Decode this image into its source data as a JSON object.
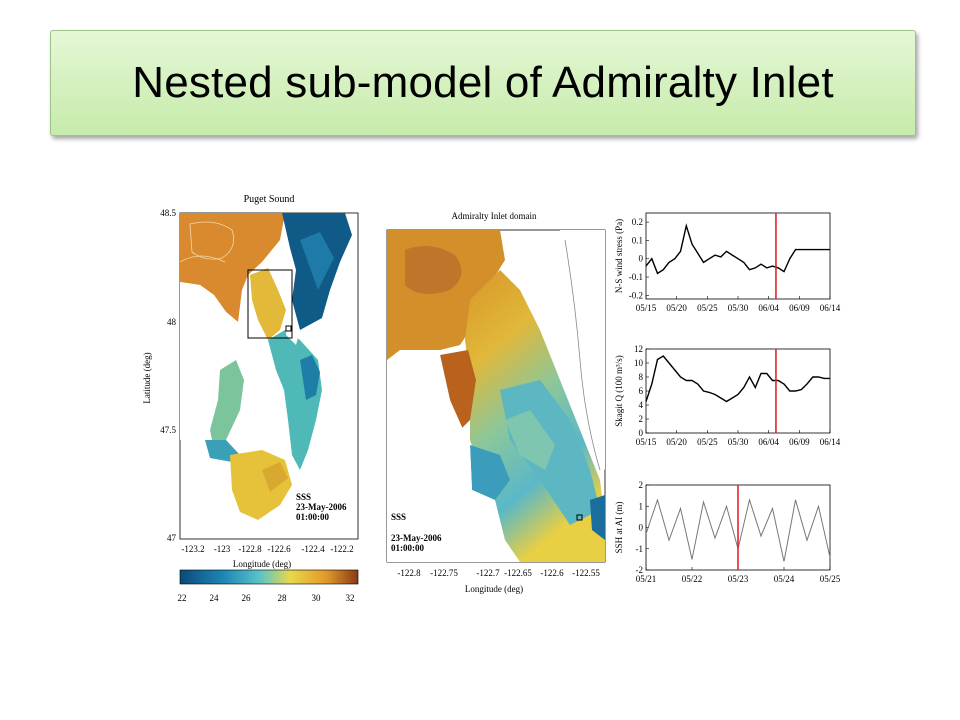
{
  "slide": {
    "title": "Nested sub-model of Admiralty Inlet"
  },
  "puget_map": {
    "title": "Puget Sound",
    "ylabel": "Latitude (deg)",
    "xlabel": "Longitude (deg)",
    "yticks": [
      "48.5",
      "48",
      "47.5",
      "47"
    ],
    "xticks": [
      "-123.2",
      "-123",
      "-122.8",
      "-122.6",
      "-122.4",
      "-122.2"
    ],
    "annotation": [
      "SSS",
      "23-May-2006",
      "01:00:00"
    ]
  },
  "colorbar": {
    "ticks": [
      "22",
      "24",
      "26",
      "28",
      "30",
      "32"
    ],
    "colors": [
      "#0b4a7a",
      "#1e88b6",
      "#5bc4c8",
      "#e8d84a",
      "#e29a2a",
      "#8a3a16"
    ]
  },
  "inlet_map": {
    "title": "Admiralty Inlet domain",
    "xlabel": "Longitude (deg)",
    "xticks": [
      "-122.8",
      "-122.75",
      "-122.7",
      "-122.65",
      "-122.6",
      "-122.55"
    ],
    "annotation": [
      "SSS",
      "23-May-2006",
      "01:00:00"
    ]
  },
  "chart_data": [
    {
      "type": "line",
      "ylabel": "N-S wind stress (Pa)",
      "xticks": [
        "05/15",
        "05/20",
        "05/25",
        "05/30",
        "06/04",
        "06/09",
        "06/14"
      ],
      "yticks": [
        "0.2",
        "0.1",
        "0",
        "-0.1",
        "-0.2"
      ],
      "ylim": [
        -0.22,
        0.25
      ],
      "marker_x": 22.6,
      "marker_color": "#e0262b",
      "series": [
        {
          "x": [
            0,
            1,
            2,
            3,
            4,
            5,
            6,
            7,
            8,
            9,
            10,
            11,
            12,
            13,
            14,
            15,
            16,
            17,
            18,
            19,
            20,
            21,
            22,
            23,
            24,
            25,
            26,
            27,
            28,
            29,
            30,
            31,
            32
          ],
          "y": [
            -0.04,
            0.0,
            -0.08,
            -0.06,
            -0.02,
            0.0,
            0.04,
            0.18,
            0.08,
            0.03,
            -0.02,
            0.0,
            0.02,
            0.01,
            0.04,
            0.02,
            0.0,
            -0.02,
            -0.06,
            -0.05,
            -0.03,
            -0.05,
            -0.04,
            -0.05,
            -0.07,
            0.0,
            0.05,
            0.05,
            0.05,
            0.05,
            0.05,
            0.05,
            0.05
          ]
        }
      ]
    },
    {
      "type": "line",
      "ylabel": "Skagit Q (100 m³/s)",
      "xticks": [
        "05/15",
        "05/20",
        "05/25",
        "05/30",
        "06/04",
        "06/09",
        "06/14"
      ],
      "yticks": [
        "12",
        "10",
        "8",
        "6",
        "4",
        "2",
        "0"
      ],
      "ylim": [
        0,
        12
      ],
      "marker_x": 22.6,
      "marker_color": "#e0262b",
      "series": [
        {
          "x": [
            0,
            1,
            2,
            3,
            4,
            5,
            6,
            7,
            8,
            9,
            10,
            11,
            12,
            13,
            14,
            15,
            16,
            17,
            18,
            19,
            20,
            21,
            22,
            23,
            24,
            25,
            26,
            27,
            28,
            29,
            30,
            31,
            32
          ],
          "y": [
            4.5,
            7.0,
            10.5,
            11.0,
            10.0,
            9.0,
            8.0,
            7.5,
            7.5,
            7.0,
            6.0,
            5.8,
            5.5,
            5.0,
            4.5,
            5.0,
            5.5,
            6.5,
            8.0,
            6.5,
            8.5,
            8.5,
            7.5,
            7.5,
            7.0,
            6.0,
            6.0,
            6.2,
            7.0,
            8.0,
            8.0,
            7.8,
            7.8
          ]
        }
      ]
    },
    {
      "type": "line",
      "ylabel": "SSH at AI (m)",
      "xticks": [
        "05/21",
        "05/22",
        "05/23",
        "05/24",
        "05/25"
      ],
      "yticks": [
        "2",
        "1",
        "0",
        "-1",
        "-2"
      ],
      "ylim": [
        -2,
        2
      ],
      "marker_x": 2.0,
      "marker_color": "#e0262b",
      "series": [
        {
          "x": [
            0,
            0.25,
            0.5,
            0.75,
            1,
            1.25,
            1.5,
            1.75,
            2,
            2.25,
            2.5,
            2.75,
            3,
            3.25,
            3.5,
            3.75,
            4
          ],
          "y": [
            -0.3,
            1.3,
            -0.6,
            0.9,
            -1.5,
            1.2,
            -0.5,
            1.0,
            -1.0,
            1.3,
            -0.4,
            0.9,
            -1.6,
            1.3,
            -0.6,
            1.0,
            -1.4
          ]
        }
      ]
    }
  ]
}
